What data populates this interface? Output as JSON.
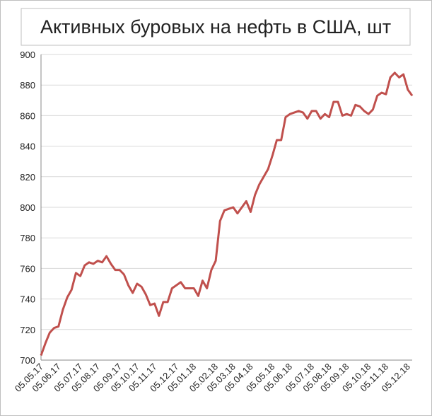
{
  "chart_data": {
    "type": "line",
    "title": "Активных буровых на нефть в США, шт",
    "categories": [
      "05.05.17",
      null,
      null,
      null,
      "05.06.17",
      null,
      null,
      null,
      null,
      "05.07.17",
      null,
      null,
      null,
      "05.08.17",
      null,
      null,
      null,
      null,
      "05.09.17",
      null,
      null,
      null,
      "05.10.17",
      null,
      null,
      null,
      "05.11.17",
      null,
      null,
      null,
      null,
      "05.12.17",
      null,
      null,
      null,
      "05.01.18",
      null,
      null,
      null,
      null,
      "05.02.18",
      null,
      null,
      null,
      "05.03.18",
      null,
      null,
      null,
      "05.04.18",
      null,
      null,
      null,
      null,
      "05.05.18",
      null,
      null,
      null,
      "05.06.18",
      null,
      null,
      null,
      null,
      "05.07.18",
      null,
      null,
      null,
      "05.08.18",
      null,
      null,
      null,
      "05.09.18",
      null,
      null,
      null,
      null,
      "05.10.18",
      null,
      null,
      null,
      "05.11.18",
      null,
      null,
      null,
      null,
      "05.12.18",
      null
    ],
    "series": [
      {
        "name": "Активных буровых",
        "color": "#c0504d",
        "values": [
          703,
          711,
          718,
          721,
          722,
          733,
          741,
          746,
          757,
          755,
          762,
          764,
          763,
          765,
          764,
          768,
          763,
          759,
          759,
          756,
          749,
          744,
          750,
          748,
          743,
          736,
          737,
          729,
          738,
          738,
          747,
          749,
          751,
          747,
          747,
          747,
          742,
          752,
          747,
          759,
          765,
          791,
          798,
          799,
          800,
          796,
          800,
          804,
          797,
          808,
          815,
          820,
          825,
          834,
          844,
          844,
          859,
          861,
          862,
          863,
          862,
          858,
          863,
          863,
          858,
          861,
          859,
          869,
          869,
          860,
          861,
          860,
          867,
          866,
          863,
          861,
          864,
          873,
          875,
          874,
          885,
          888,
          885,
          887,
          877,
          873
        ]
      }
    ],
    "ylim": [
      700,
      900
    ],
    "yticks": [
      700,
      720,
      740,
      760,
      780,
      800,
      820,
      840,
      860,
      880,
      900
    ],
    "grid": true
  }
}
